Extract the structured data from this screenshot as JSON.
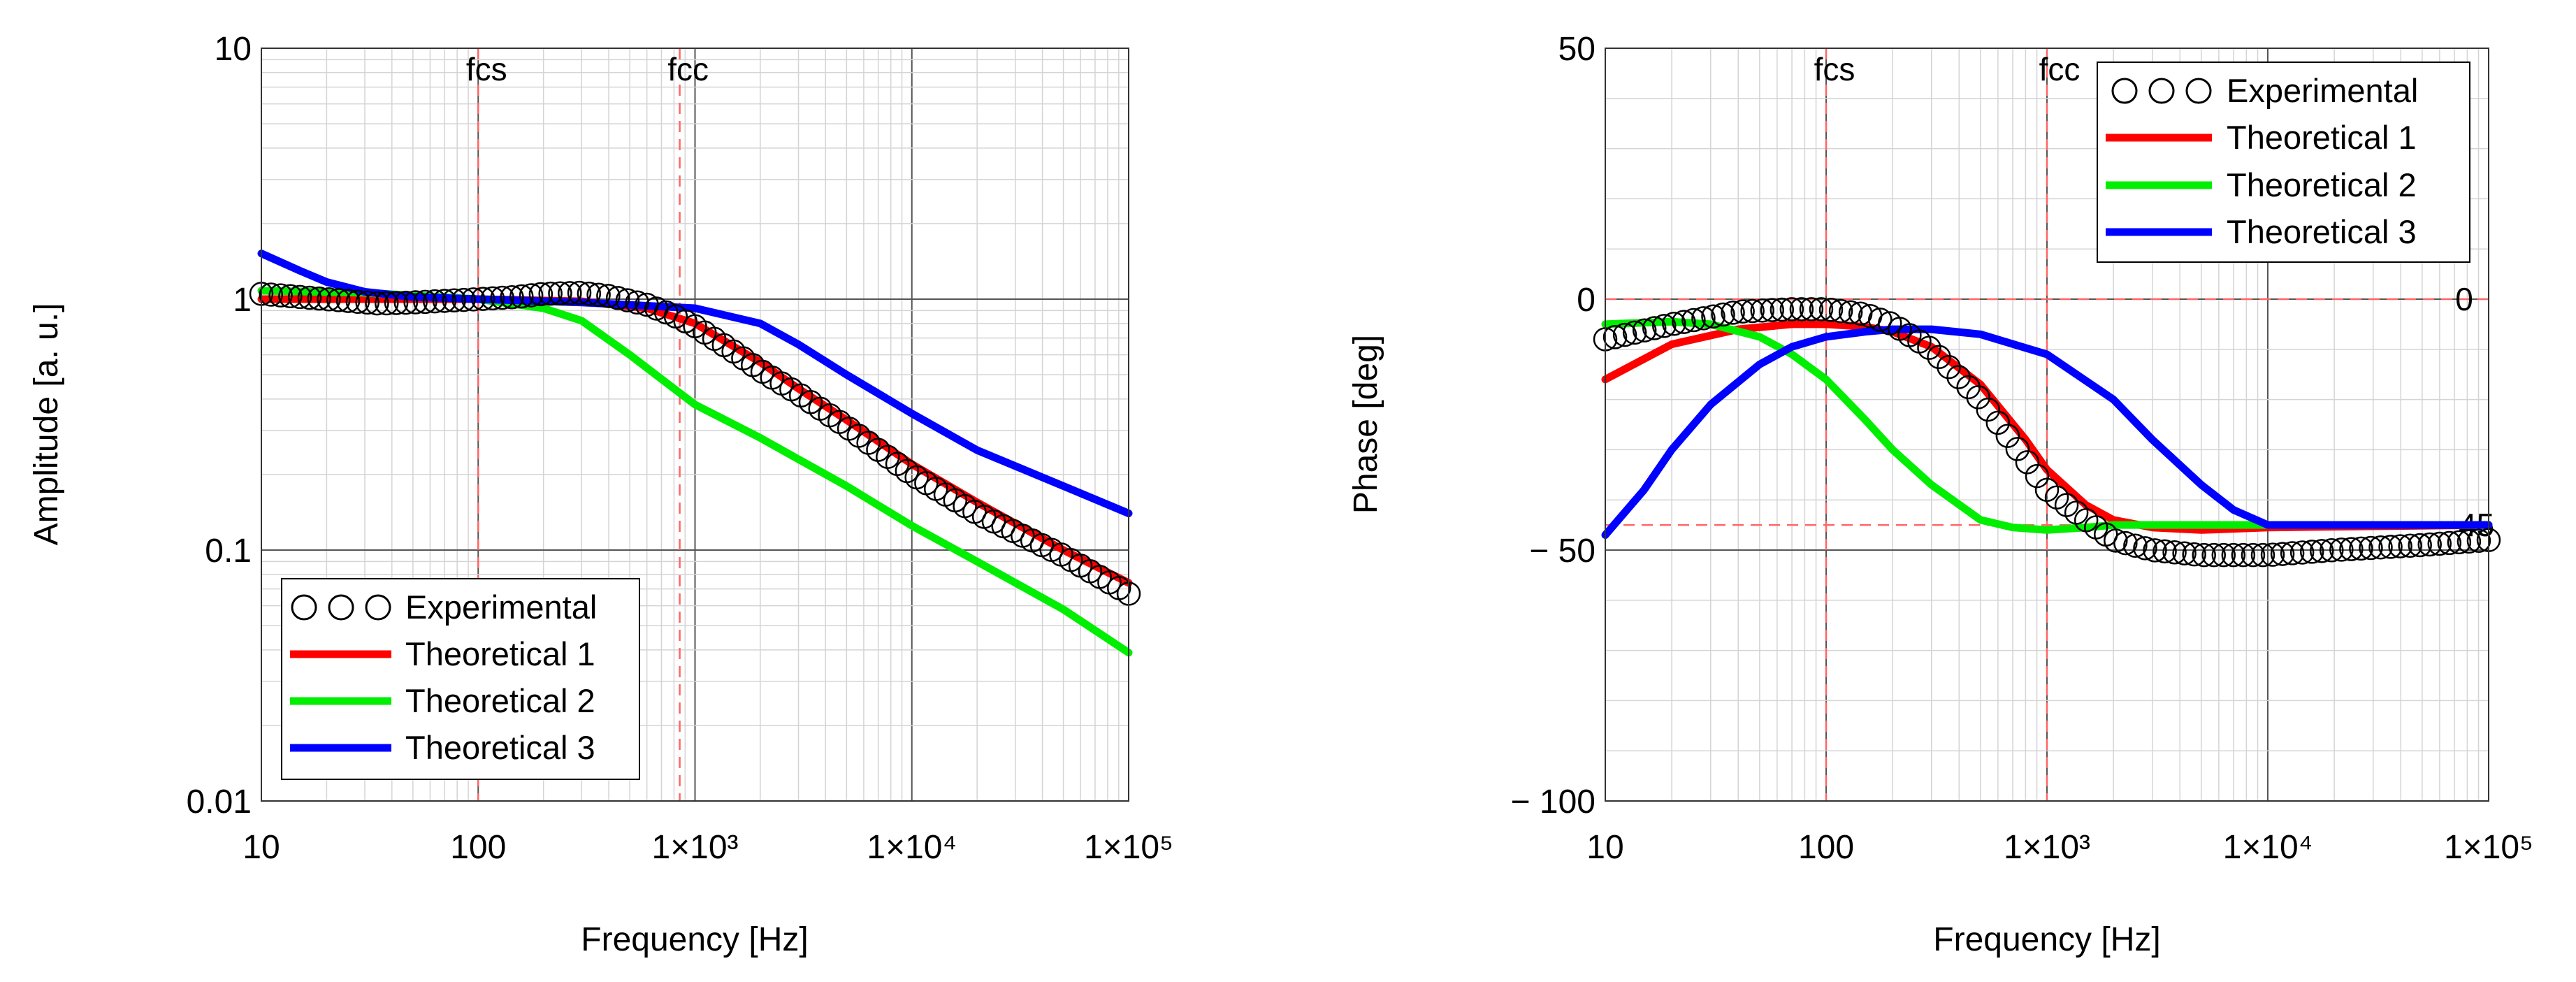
{
  "colors": {
    "experimental": "#000000",
    "theoretical_1": "#ff0000",
    "theoretical_2": "#00ee00",
    "theoretical_3": "#0000ff",
    "reference_line": "#ff6666",
    "grid_major": "#555555",
    "grid_minor": "#d4d4d4"
  },
  "chart_data": [
    {
      "type": "line",
      "title": "",
      "xlabel": "Frequency [Hz]",
      "ylabel": "Amplitude [a. u.]",
      "xscale": "log",
      "yscale": "log",
      "xlim": [
        10,
        100000
      ],
      "ylim": [
        0.01,
        10
      ],
      "x_ticks": [
        10,
        100,
        1000,
        10000,
        100000
      ],
      "x_tick_labels": [
        "10",
        "100",
        "1×10³",
        "1×10⁴",
        "1×10⁵"
      ],
      "y_ticks": [
        0.01,
        0.1,
        1,
        10
      ],
      "y_tick_labels": [
        "0.01",
        "0.1",
        "1",
        "10"
      ],
      "grid": true,
      "legend_position": "bottom-left",
      "vlines": [
        {
          "label": "fcs",
          "x": 100
        },
        {
          "label": "fcc",
          "x": 850
        }
      ],
      "hlines": [],
      "series": [
        {
          "name": "Experimental",
          "style": "circles",
          "x": [
            10,
            20,
            35,
            50,
            80,
            100,
            150,
            200,
            300,
            400,
            600,
            800,
            1000,
            1500,
            2000,
            3000,
            5000,
            10000,
            20000,
            50000,
            100000
          ],
          "y": [
            1.05,
            1.0,
            0.96,
            0.97,
            0.99,
            1.0,
            1.02,
            1.05,
            1.06,
            1.03,
            0.95,
            0.86,
            0.78,
            0.62,
            0.52,
            0.42,
            0.31,
            0.2,
            0.14,
            0.095,
            0.067
          ]
        },
        {
          "name": "Theoretical 1",
          "style": "line",
          "x": [
            10,
            30,
            100,
            300,
            600,
            1000,
            2000,
            3000,
            5000,
            10000,
            20000,
            50000,
            100000
          ],
          "y": [
            1.0,
            1.0,
            1.0,
            0.98,
            0.92,
            0.8,
            0.56,
            0.44,
            0.33,
            0.22,
            0.155,
            0.1,
            0.074
          ]
        },
        {
          "name": "Theoretical 2",
          "style": "line",
          "x": [
            10,
            30,
            100,
            200,
            300,
            500,
            800,
            1000,
            2000,
            3000,
            5000,
            10000,
            20000,
            50000,
            100000
          ],
          "y": [
            1.08,
            1.06,
            1.0,
            0.92,
            0.82,
            0.6,
            0.44,
            0.38,
            0.28,
            0.23,
            0.18,
            0.125,
            0.09,
            0.058,
            0.039
          ]
        },
        {
          "name": "Theoretical 3",
          "style": "line",
          "x": [
            10,
            15,
            20,
            30,
            50,
            100,
            300,
            1000,
            2000,
            3000,
            5000,
            10000,
            20000,
            50000,
            100000
          ],
          "y": [
            1.52,
            1.3,
            1.17,
            1.07,
            1.02,
            1.0,
            0.97,
            0.92,
            0.8,
            0.66,
            0.5,
            0.35,
            0.25,
            0.18,
            0.14
          ]
        }
      ]
    },
    {
      "type": "line",
      "title": "",
      "xlabel": "Frequency [Hz]",
      "ylabel": "Phase [deg]",
      "xscale": "log",
      "yscale": "linear",
      "xlim": [
        10,
        100000
      ],
      "ylim": [
        -100,
        50
      ],
      "x_ticks": [
        10,
        100,
        1000,
        10000,
        100000
      ],
      "x_tick_labels": [
        "10",
        "100",
        "1×10³",
        "1×10⁴",
        "1×10⁵"
      ],
      "y_ticks": [
        -100,
        -50,
        0,
        50
      ],
      "y_tick_labels": [
        "− 100",
        "− 50",
        "0",
        "50"
      ],
      "grid": true,
      "legend_position": "top-right",
      "vlines": [
        {
          "label": "fcs",
          "x": 100
        },
        {
          "label": "fcc",
          "x": 1000
        }
      ],
      "hlines": [
        {
          "label": "0",
          "y": 0
        },
        {
          "label": "-45",
          "y": -45
        }
      ],
      "series": [
        {
          "name": "Experimental",
          "style": "circles",
          "x": [
            10,
            20,
            40,
            70,
            100,
            150,
            200,
            300,
            500,
            800,
            1000,
            1500,
            2000,
            3000,
            5000,
            10000,
            20000,
            50000,
            100000
          ],
          "y": [
            -8,
            -5,
            -2.5,
            -2,
            -2,
            -3,
            -5,
            -10,
            -20,
            -32,
            -38,
            -44,
            -48,
            -50,
            -51,
            -51,
            -50,
            -49,
            -48
          ]
        },
        {
          "name": "Theoretical 1",
          "style": "line",
          "x": [
            10,
            20,
            40,
            70,
            100,
            150,
            200,
            300,
            500,
            800,
            1000,
            1500,
            2000,
            3000,
            5000,
            10000,
            100000
          ],
          "y": [
            -16,
            -9,
            -6,
            -5,
            -5,
            -5.5,
            -6.5,
            -9.5,
            -17,
            -28,
            -34,
            -41,
            -44,
            -45.5,
            -46,
            -45.5,
            -45
          ]
        },
        {
          "name": "Theoretical 2",
          "style": "line",
          "x": [
            10,
            20,
            30,
            50,
            70,
            100,
            150,
            200,
            300,
            500,
            700,
            1000,
            1500,
            2000,
            5000,
            100000
          ],
          "y": [
            -5,
            -4.5,
            -5,
            -7.5,
            -11,
            -16,
            -24,
            -30,
            -37,
            -44,
            -45.5,
            -46,
            -45.5,
            -45,
            -45,
            -45
          ]
        },
        {
          "name": "Theoretical 3",
          "style": "line",
          "x": [
            10,
            15,
            20,
            30,
            50,
            70,
            100,
            150,
            200,
            300,
            500,
            1000,
            2000,
            3000,
            5000,
            7000,
            10000,
            20000,
            100000
          ],
          "y": [
            -47,
            -38,
            -30,
            -21,
            -13,
            -9.5,
            -7.5,
            -6.5,
            -6,
            -6,
            -7,
            -11,
            -20,
            -28,
            -37,
            -42,
            -45,
            -45,
            -45
          ]
        }
      ]
    }
  ]
}
